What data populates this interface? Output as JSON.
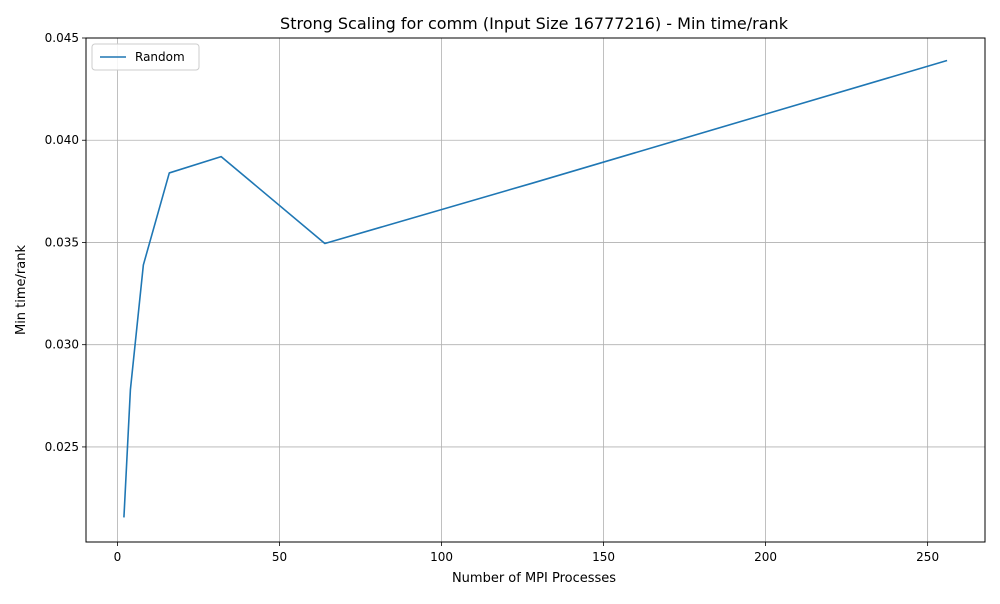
{
  "chart_data": {
    "type": "line",
    "title": "Strong Scaling for comm (Input Size 16777216) - Min time/rank",
    "xlabel": "Number of MPI Processes",
    "ylabel": "Min time/rank",
    "xlim": [
      -9.7,
      267.7
    ],
    "ylim": [
      0.02035,
      0.045
    ],
    "xticks": [
      0,
      50,
      100,
      150,
      200,
      250
    ],
    "yticks": [
      0.025,
      0.03,
      0.035,
      0.04,
      0.045
    ],
    "ytick_labels": [
      "0.025",
      "0.030",
      "0.035",
      "0.040",
      "0.045"
    ],
    "grid": true,
    "legend_position": "upper-left",
    "series": [
      {
        "name": "Random",
        "color": "#1f77b4",
        "x": [
          2,
          4,
          8,
          16,
          32,
          64,
          128,
          256
        ],
        "y": [
          0.02155,
          0.0278,
          0.0339,
          0.0384,
          0.0392,
          0.03495,
          0.0379,
          0.0439
        ]
      }
    ]
  }
}
